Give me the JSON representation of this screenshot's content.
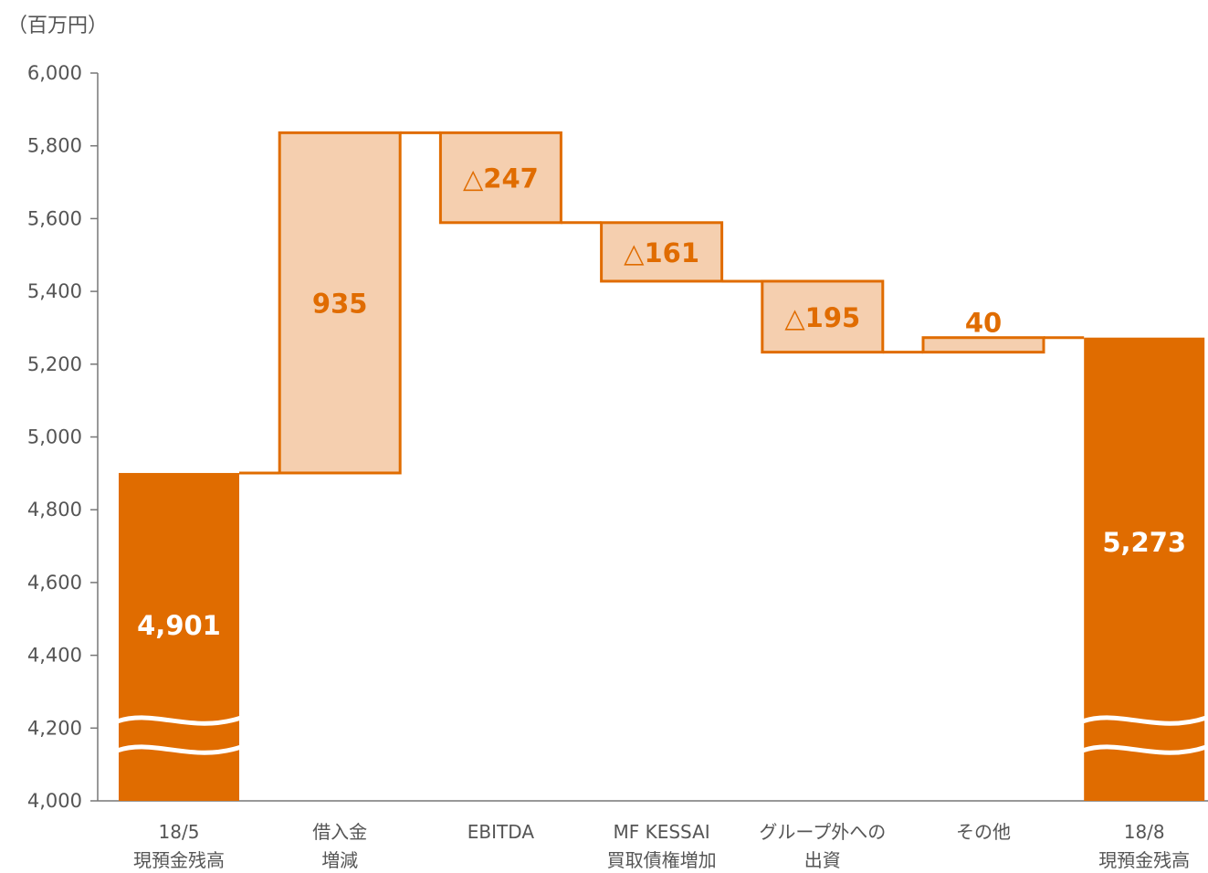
{
  "unit_label": "（百万円）",
  "colors": {
    "accent": "#E06C00",
    "light_fill": "#F5CFAF",
    "axis": "#777777",
    "tick_text": "#555555",
    "white": "#FFFFFF"
  },
  "chart_data": {
    "type": "bar",
    "subtype": "waterfall",
    "title": "",
    "xlabel": "",
    "ylabel": "（百万円）",
    "ylim": [
      4000,
      6000
    ],
    "yticks": [
      {
        "value": 6000,
        "label": "6,000"
      },
      {
        "value": 5800,
        "label": "5,800"
      },
      {
        "value": 5600,
        "label": "5,600"
      },
      {
        "value": 5400,
        "label": "5,400"
      },
      {
        "value": 5200,
        "label": "5,200"
      },
      {
        "value": 5000,
        "label": "5,000"
      },
      {
        "value": 4800,
        "label": "4,800"
      },
      {
        "value": 4600,
        "label": "4,600"
      },
      {
        "value": 4400,
        "label": "4,400"
      },
      {
        "value": 4200,
        "label": "4,200"
      },
      {
        "value": 4000,
        "label": "4,000"
      }
    ],
    "axis_break": true,
    "bars": [
      {
        "category": [
          "18/5",
          "現預金残高"
        ],
        "kind": "total",
        "start": 4000,
        "end": 4901,
        "value": 4901,
        "label": "4,901"
      },
      {
        "category": [
          "借入金",
          "増減"
        ],
        "kind": "increase",
        "start": 4901,
        "end": 5836,
        "value": 935,
        "label": "935"
      },
      {
        "category": [
          "EBITDA"
        ],
        "kind": "decrease",
        "start": 5836,
        "end": 5589,
        "value": -247,
        "label": "△247"
      },
      {
        "category": [
          "MF KESSAI",
          "買取債権増加"
        ],
        "kind": "decrease",
        "start": 5589,
        "end": 5428,
        "value": -161,
        "label": "△161"
      },
      {
        "category": [
          "グループ外への",
          "出資"
        ],
        "kind": "decrease",
        "start": 5428,
        "end": 5233,
        "value": -195,
        "label": "△195"
      },
      {
        "category": [
          "その他"
        ],
        "kind": "increase",
        "start": 5233,
        "end": 5273,
        "value": 40,
        "label": "40"
      },
      {
        "category": [
          "18/8",
          "現預金残高"
        ],
        "kind": "total",
        "start": 4000,
        "end": 5273,
        "value": 5273,
        "label": "5,273"
      }
    ]
  }
}
